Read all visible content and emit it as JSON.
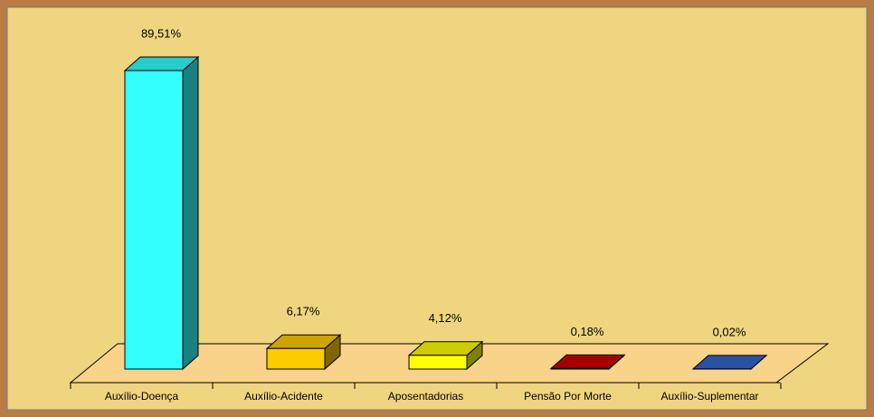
{
  "chart_data": {
    "type": "bar3d",
    "categories": [
      "Auxílio-Doença",
      "Auxílio-Acidente",
      "Aposentadorias",
      "Pensão Por Morte",
      "Auxílio-Suplementar"
    ],
    "values": [
      89.51,
      6.17,
      4.12,
      0.18,
      0.02
    ],
    "value_labels": [
      "89,51%",
      "6,17%",
      "4,12%",
      "0,18%",
      "0,02%"
    ],
    "colors": [
      "#33ffff",
      "#ffcc00",
      "#ffff00",
      "#cc0000",
      "#3366cc"
    ]
  }
}
